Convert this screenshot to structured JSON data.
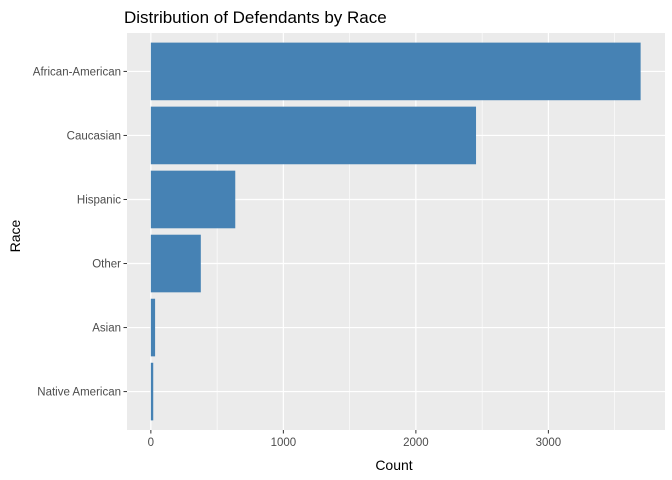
{
  "chart_data": {
    "type": "bar",
    "orientation": "horizontal",
    "title": "Distribution of Defendants by Race",
    "xlabel": "Count",
    "ylabel": "Race",
    "categories": [
      "African-American",
      "Caucasian",
      "Hispanic",
      "Other",
      "Asian",
      "Native American"
    ],
    "values": [
      3696,
      2454,
      637,
      377,
      32,
      18
    ],
    "xlim": [
      -180,
      3880
    ],
    "xticks": [
      0,
      1000,
      2000,
      3000
    ],
    "xtick_labels": [
      "0",
      "1000",
      "2000",
      "3000"
    ],
    "grid": true,
    "legend": "none",
    "colors": {
      "bar": "#4682b4",
      "panel": "#ebebeb",
      "grid": "#ffffff",
      "tick": "#333333"
    }
  }
}
